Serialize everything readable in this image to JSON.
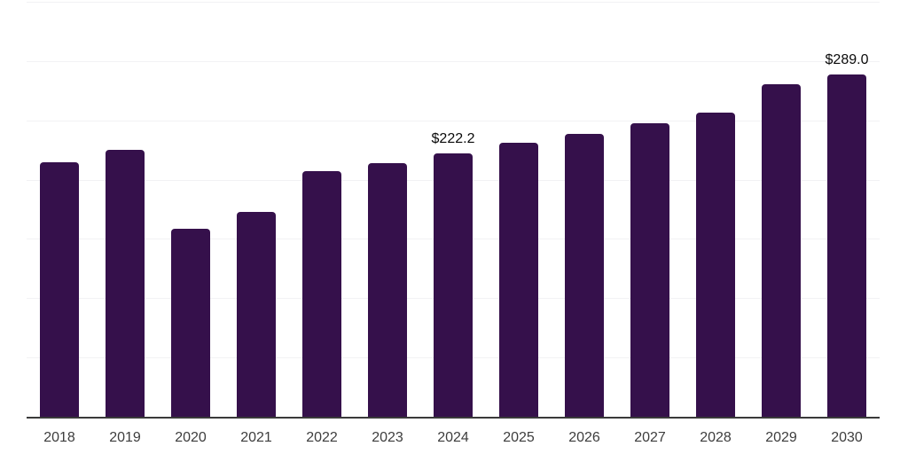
{
  "chart_data": {
    "type": "bar",
    "title": "",
    "xlabel": "",
    "ylabel": "",
    "categories": [
      "2018",
      "2019",
      "2020",
      "2021",
      "2022",
      "2023",
      "2024",
      "2025",
      "2026",
      "2027",
      "2028",
      "2029",
      "2030"
    ],
    "values": [
      214.5,
      225.4,
      158.2,
      172.6,
      207.0,
      214.2,
      222.2,
      230.8,
      238.5,
      247.8,
      256.4,
      280.6,
      289.0
    ],
    "point_labels": [
      "",
      "",
      "",
      "",
      "",
      "",
      "$222.2",
      "",
      "",
      "",
      "",
      "",
      "$289.0"
    ],
    "ylim": [
      0,
      350
    ],
    "grid_step": 50,
    "grid": true,
    "legend": false,
    "y_axis_labels_visible": false,
    "colors": {
      "bar": "#35104B",
      "axis_line": "#3a3a3a",
      "gridline": "#f2f2f4",
      "value_label": "#0a0a0a",
      "tick_label": "#3d3d3d",
      "background": "#ffffff"
    }
  }
}
